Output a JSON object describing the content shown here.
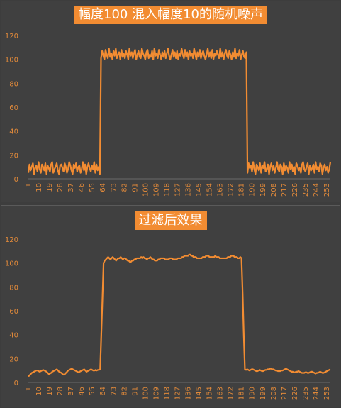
{
  "colors": {
    "background": "#404040",
    "series": "#f28c32",
    "title_bg": "#f28c32",
    "title_text": "#ffffff",
    "tick_text": "#e0893a"
  },
  "chart_data": [
    {
      "type": "line",
      "title": "幅度100 混入幅度10的随机噪声",
      "xlabel": "",
      "ylabel": "",
      "ylim": [
        0,
        120
      ],
      "yticks": [
        0,
        20,
        40,
        60,
        80,
        100,
        120
      ],
      "xticks": [
        1,
        10,
        19,
        28,
        37,
        46,
        55,
        64,
        73,
        82,
        91,
        100,
        109,
        118,
        127,
        136,
        145,
        154,
        163,
        172,
        181,
        190,
        199,
        208,
        217,
        226,
        235,
        244,
        253
      ],
      "grid": false,
      "legend": "none",
      "series": [
        {
          "x_start": 1,
          "x_end": 256,
          "values": [
            5,
            12,
            7,
            10,
            13,
            4,
            9,
            11,
            6,
            14,
            8,
            5,
            12,
            10,
            7,
            13,
            4,
            11,
            9,
            6,
            12,
            14,
            5,
            8,
            10,
            13,
            7,
            4,
            11,
            12,
            9,
            6,
            13,
            10,
            5,
            8,
            14,
            11,
            7,
            4,
            12,
            9,
            13,
            6,
            10,
            11,
            5,
            8,
            14,
            7,
            12,
            4,
            10,
            13,
            9,
            6,
            11,
            8,
            14,
            5,
            12,
            7,
            10,
            4,
            101,
            107,
            103,
            100,
            108,
            104,
            101,
            109,
            102,
            105,
            100,
            107,
            103,
            109,
            101,
            104,
            106,
            100,
            108,
            102,
            105,
            101,
            107,
            104,
            100,
            109,
            103,
            106,
            101,
            105,
            108,
            100,
            104,
            107,
            102,
            101,
            109,
            105,
            103,
            100,
            106,
            108,
            101,
            104,
            102,
            107,
            100,
            109,
            103,
            105,
            101,
            108,
            104,
            100,
            106,
            102,
            107,
            101,
            105,
            109,
            103,
            100,
            104,
            108,
            102,
            106,
            101,
            107,
            100,
            105,
            103,
            109,
            104,
            101,
            108,
            102,
            106,
            100,
            107,
            103,
            105,
            101,
            109,
            104,
            100,
            106,
            102,
            108,
            101,
            105,
            107,
            103,
            100,
            104,
            109,
            102,
            106,
            101,
            108,
            100,
            105,
            103,
            107,
            104,
            101,
            109,
            102,
            106,
            100,
            105,
            108,
            103,
            101,
            107,
            104,
            100,
            106,
            102,
            109,
            101,
            105,
            103,
            108,
            100,
            104,
            107,
            102,
            101,
            106,
            5,
            13,
            9,
            11,
            6,
            14,
            8,
            4,
            12,
            10,
            7,
            13,
            5,
            11,
            9,
            14,
            6,
            8,
            12,
            4,
            10,
            13,
            7,
            11,
            5,
            9,
            14,
            8,
            6,
            12,
            10,
            4,
            13,
            7,
            11,
            9,
            5,
            14,
            8,
            12,
            6,
            10,
            4,
            13,
            11,
            7,
            9,
            5,
            12,
            14,
            8,
            6,
            10,
            13,
            4,
            11,
            7,
            9,
            12,
            5,
            14,
            8,
            10,
            6,
            13,
            11,
            4,
            9,
            12,
            7,
            10,
            5,
            8,
            14
          ]
        }
      ]
    },
    {
      "type": "line",
      "title": "过滤后效果",
      "xlabel": "",
      "ylabel": "",
      "ylim": [
        0,
        120
      ],
      "yticks": [
        0,
        20,
        40,
        60,
        80,
        100,
        120
      ],
      "xticks": [
        1,
        10,
        19,
        28,
        37,
        46,
        55,
        64,
        73,
        82,
        91,
        100,
        109,
        118,
        127,
        136,
        145,
        154,
        163,
        172,
        181,
        190,
        199,
        208,
        217,
        226,
        235,
        244,
        253
      ],
      "grid": false,
      "legend": "none",
      "series": [
        {
          "x_start": 1,
          "x_end": 256,
          "values": [
            5,
            6,
            7,
            8,
            8.5,
            9,
            9.5,
            10,
            10,
            9.5,
            9,
            9.5,
            10,
            10.5,
            10,
            9.5,
            9,
            8,
            7,
            7.5,
            8,
            9,
            9.5,
            10,
            10.5,
            11,
            10,
            9,
            8.5,
            8,
            7,
            6.5,
            7,
            8,
            9,
            10,
            10.5,
            11,
            11.5,
            11,
            10.5,
            10,
            9.5,
            9,
            8.5,
            9,
            9.5,
            10,
            10.5,
            11,
            10,
            9,
            9.5,
            10,
            10.5,
            11,
            10.5,
            10,
            10,
            10.5,
            10,
            10.5,
            10.5,
            11,
            40,
            70,
            100,
            102,
            103,
            104,
            105,
            104,
            103,
            104,
            105,
            104,
            103,
            102,
            103,
            104,
            104,
            105,
            104,
            103,
            104,
            104,
            103,
            102,
            102,
            101,
            101,
            102,
            102,
            103,
            103,
            104,
            104,
            104,
            104,
            105,
            104,
            105,
            104,
            104,
            103,
            104,
            104,
            105,
            104,
            103,
            103,
            102,
            102,
            102,
            103,
            103,
            104,
            104,
            104,
            104,
            103,
            103,
            103,
            103,
            104,
            104,
            104,
            103,
            103,
            103,
            103,
            104,
            104,
            104,
            104,
            105,
            105,
            106,
            106,
            106,
            106,
            107,
            107,
            106,
            106,
            105,
            105,
            105,
            104,
            104,
            104,
            104,
            104,
            105,
            105,
            105,
            106,
            106,
            106,
            105,
            105,
            105,
            105,
            105,
            106,
            105,
            105,
            105,
            104,
            104,
            104,
            104,
            104,
            104,
            104,
            105,
            105,
            105,
            106,
            106,
            106,
            105,
            105,
            105,
            104,
            104,
            105,
            104,
            75,
            40,
            11,
            10.5,
            11,
            10.5,
            10,
            10.5,
            11,
            11,
            10.5,
            10,
            9.5,
            9.5,
            10,
            10.5,
            10,
            9.5,
            9.5,
            10,
            10.5,
            10.5,
            11,
            11,
            11.5,
            11.5,
            11,
            11,
            10.5,
            10,
            10,
            9.5,
            9.5,
            9.5,
            10,
            10,
            10.5,
            11,
            11.5,
            11,
            10.5,
            10,
            9.5,
            9,
            9,
            8.5,
            8.5,
            9,
            9,
            9.5,
            9,
            8.5,
            8,
            8,
            8,
            8.5,
            8.5,
            8,
            8,
            8.5,
            9,
            9,
            8.5,
            8,
            7.5,
            8,
            8,
            8.5,
            9,
            8.5,
            8,
            8,
            8.5,
            9,
            9.5,
            10,
            10.5,
            11
          ]
        }
      ]
    }
  ]
}
